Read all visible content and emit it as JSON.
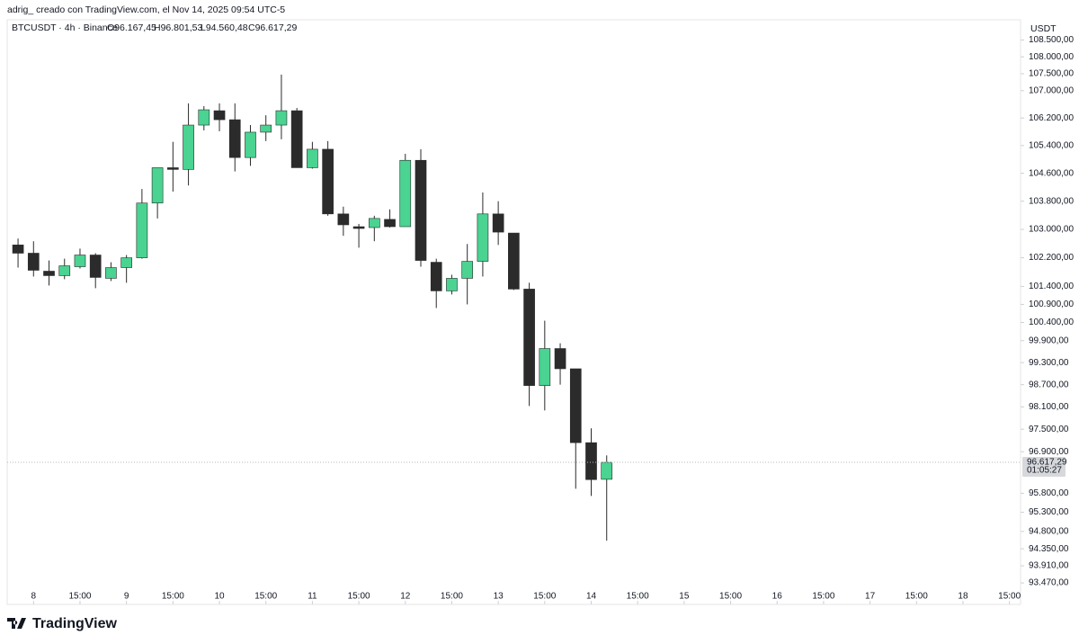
{
  "chart_data": {
    "type": "candlestick",
    "caption": "adrig_ creado con TradingView.com, el Nov 14, 2025 09:54 UTC-5",
    "symbol": "BTCUSDT · 4h · Binance",
    "ohlc_text": [
      "O96.167,45",
      "H96.801,53",
      "L94.560,48",
      "C96.617,29"
    ],
    "currency": "USDT",
    "brand": "TradingView",
    "up_color": "#4ad391",
    "down_color": "#2b2b2b",
    "log": true,
    "open": [
      102561,
      102329,
      101825,
      101700,
      101950,
      102278,
      101625,
      101925,
      102200,
      103748,
      104760,
      104710,
      105994,
      106413,
      106150,
      105053,
      105787,
      105994,
      106413,
      104760,
      105293,
      103439,
      103077,
      103052,
      103284,
      103077,
      104973,
      102075,
      101275,
      101625,
      102100,
      103439,
      102897,
      101325,
      98676,
      99684,
      99132,
      97140,
      96167.45
    ],
    "high": [
      102742,
      102665,
      102125,
      102175,
      102458,
      102329,
      102075,
      102278,
      104150,
      104760,
      105507,
      106627,
      106547,
      106627,
      106627,
      105994,
      106280,
      107474,
      106493,
      105507,
      105529,
      103645,
      103155,
      103387,
      103568,
      105160,
      105293,
      102175,
      101725,
      102587,
      104050,
      103800,
      102897,
      101500,
      100450,
      99828,
      99132,
      97524,
      96801.53
    ],
    "low": [
      101925,
      101675,
      101425,
      101600,
      101900,
      101350,
      101550,
      101500,
      102175,
      103310,
      104075,
      104250,
      105839,
      105813,
      104653,
      104813,
      105529,
      105581,
      104760,
      104733,
      103387,
      102819,
      102484,
      102665,
      103052,
      103077,
      101950,
      100800,
      101175,
      100900,
      101675,
      102561,
      101300,
      98125,
      98004,
      98700,
      95920,
      95729,
      94560.48
    ],
    "close": [
      102329,
      101850,
      101700,
      101975,
      102278,
      101650,
      101925,
      102200,
      103748,
      104760,
      104710,
      105994,
      106440,
      106150,
      105053,
      105787,
      105994,
      106413,
      104760,
      105293,
      103439,
      103129,
      103026,
      103310,
      103077,
      104973,
      102125,
      101275,
      101625,
      102100,
      103439,
      102923,
      101325,
      98676,
      99684,
      99132,
      97140,
      96159,
      96617.29
    ],
    "xlim": [
      -0.7,
      64.6
    ],
    "xticks": [
      {
        "value": 1,
        "label": "8"
      },
      {
        "value": 4,
        "label": "15:00"
      },
      {
        "value": 7,
        "label": "9"
      },
      {
        "value": 10,
        "label": "15:00"
      },
      {
        "value": 13,
        "label": "10"
      },
      {
        "value": 16,
        "label": "15:00"
      },
      {
        "value": 19,
        "label": "11"
      },
      {
        "value": 22,
        "label": "15:00"
      },
      {
        "value": 25,
        "label": "12"
      },
      {
        "value": 28,
        "label": "15:00"
      },
      {
        "value": 31,
        "label": "13"
      },
      {
        "value": 34,
        "label": "15:00"
      },
      {
        "value": 37,
        "label": "14"
      },
      {
        "value": 40,
        "label": "15:00"
      },
      {
        "value": 43,
        "label": "15"
      },
      {
        "value": 46,
        "label": "15:00"
      },
      {
        "value": 49,
        "label": "16"
      },
      {
        "value": 52,
        "label": "15:00"
      },
      {
        "value": 55,
        "label": "17"
      },
      {
        "value": 58,
        "label": "15:00"
      },
      {
        "value": 61,
        "label": "18"
      },
      {
        "value": 64,
        "label": "15:00"
      }
    ],
    "ylim": [
      93310,
      108700
    ],
    "yticks": [
      {
        "value": 108500,
        "label": "108.500,00"
      },
      {
        "value": 108000,
        "label": "108.000,00"
      },
      {
        "value": 107500,
        "label": "107.500,00"
      },
      {
        "value": 107000,
        "label": "107.000,00"
      },
      {
        "value": 106200,
        "label": "106.200,00"
      },
      {
        "value": 105400,
        "label": "105.400,00"
      },
      {
        "value": 104600,
        "label": "104.600,00"
      },
      {
        "value": 103800,
        "label": "103.800,00"
      },
      {
        "value": 103000,
        "label": "103.000,00"
      },
      {
        "value": 102200,
        "label": "102.200,00"
      },
      {
        "value": 101400,
        "label": "101.400,00"
      },
      {
        "value": 100900,
        "label": "100.900,00"
      },
      {
        "value": 100400,
        "label": "100.400,00"
      },
      {
        "value": 99900,
        "label": "99.900,00"
      },
      {
        "value": 99300,
        "label": "99.300,00"
      },
      {
        "value": 98700,
        "label": "98.700,00"
      },
      {
        "value": 98100,
        "label": "98.100,00"
      },
      {
        "value": 97500,
        "label": "97.500,00"
      },
      {
        "value": 96900,
        "label": "96.900,00"
      },
      {
        "value": 95800,
        "label": "95.800,00"
      },
      {
        "value": 95300,
        "label": "95.300,00"
      },
      {
        "value": 94800,
        "label": "94.800,00"
      },
      {
        "value": 94350,
        "label": "94.350,00"
      },
      {
        "value": 93910,
        "label": "93.910,00"
      },
      {
        "value": 93470,
        "label": "93.470,00"
      }
    ],
    "last_price": {
      "value": 96617.29,
      "label": "96.617,29"
    },
    "countdown": "01:05:27"
  }
}
